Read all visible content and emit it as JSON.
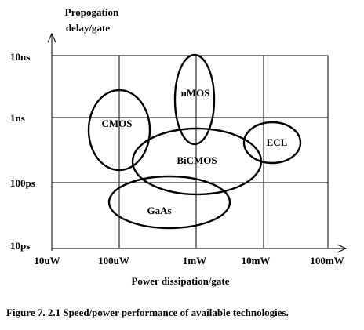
{
  "y_axis_title": [
    "Propogation",
    "delay/gate"
  ],
  "x_axis_title": "Power dissipation/gate",
  "caption": "Figure 7. 2.1   Speed/power performance of available technologies.",
  "chart_data": {
    "type": "scatter",
    "x_scale": "log",
    "y_scale": "log",
    "x_ticks": [
      "10uW",
      "100uW",
      "1mW",
      "10mW",
      "100mW"
    ],
    "y_ticks": [
      "10ns",
      "1ns",
      "100ps",
      "10ps"
    ],
    "regions": [
      {
        "label": "CMOS"
      },
      {
        "label": "nMOS"
      },
      {
        "label": "BiCMOS"
      },
      {
        "label": "ECL"
      },
      {
        "label": "GaAs"
      }
    ]
  }
}
